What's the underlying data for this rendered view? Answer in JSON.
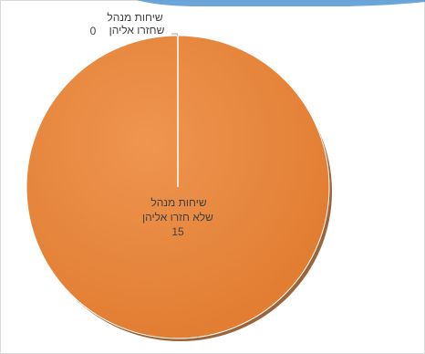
{
  "chart_data": {
    "type": "pie",
    "categories": [
      "שיחות מנהל שחזרו אליהן",
      "שיחות מנהל שלא חזרו אליהן"
    ],
    "values": [
      0,
      15
    ],
    "data_labels": [
      {
        "line1": "שיחות מנהל",
        "line2": "שחזרו אליהן",
        "value": "0"
      },
      {
        "line1": "שיחות מנהל",
        "line2": "שלא חזרו אליהן",
        "value": "15"
      }
    ],
    "colors": {
      "slice_main": "#e8843a",
      "slice_shadow": "#8a4a1a",
      "slice_border": "#ffffff",
      "leader_line": "#a6a6a6",
      "frame_border": "#d9d9d9",
      "accent_strip": "#5b9bd5"
    },
    "legend": "none",
    "title": ""
  }
}
